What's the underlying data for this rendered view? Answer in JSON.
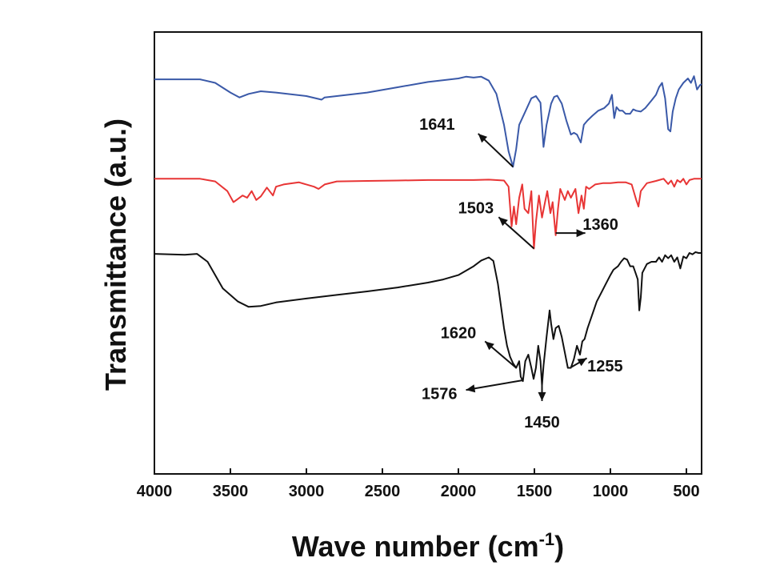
{
  "chart_data": {
    "type": "line",
    "xlabel": "Wave number (cm",
    "xlabel_sup": "-1",
    "xlabel_close": ")",
    "ylabel": "Transmittance (a.u.)",
    "xlim": [
      4000,
      400
    ],
    "x_reversed": true,
    "x_ticks": [
      "4000",
      "3500",
      "3000",
      "2500",
      "2000",
      "1500",
      "1000",
      "500"
    ],
    "y_ticks_visible": false,
    "grid": false,
    "legend": "none",
    "series": [
      {
        "color": "#3a59a8",
        "points": [
          [
            4000,
            0.893
          ],
          [
            3700,
            0.893
          ],
          [
            3600,
            0.885
          ],
          [
            3500,
            0.863
          ],
          [
            3440,
            0.852
          ],
          [
            3380,
            0.86
          ],
          [
            3300,
            0.866
          ],
          [
            3200,
            0.863
          ],
          [
            3000,
            0.855
          ],
          [
            2900,
            0.847
          ],
          [
            2880,
            0.852
          ],
          [
            2800,
            0.855
          ],
          [
            2600,
            0.863
          ],
          [
            2400,
            0.875
          ],
          [
            2200,
            0.887
          ],
          [
            2000,
            0.895
          ],
          [
            1950,
            0.899
          ],
          [
            1900,
            0.897
          ],
          [
            1850,
            0.899
          ],
          [
            1800,
            0.89
          ],
          [
            1750,
            0.86
          ],
          [
            1700,
            0.79
          ],
          [
            1670,
            0.73
          ],
          [
            1641,
            0.695
          ],
          [
            1620,
            0.735
          ],
          [
            1600,
            0.79
          ],
          [
            1560,
            0.82
          ],
          [
            1520,
            0.85
          ],
          [
            1490,
            0.855
          ],
          [
            1460,
            0.84
          ],
          [
            1440,
            0.74
          ],
          [
            1420,
            0.79
          ],
          [
            1390,
            0.838
          ],
          [
            1370,
            0.853
          ],
          [
            1350,
            0.856
          ],
          [
            1320,
            0.838
          ],
          [
            1290,
            0.8
          ],
          [
            1260,
            0.768
          ],
          [
            1240,
            0.772
          ],
          [
            1220,
            0.768
          ],
          [
            1195,
            0.75
          ],
          [
            1175,
            0.79
          ],
          [
            1150,
            0.8
          ],
          [
            1120,
            0.81
          ],
          [
            1080,
            0.822
          ],
          [
            1040,
            0.828
          ],
          [
            1010,
            0.838
          ],
          [
            990,
            0.858
          ],
          [
            975,
            0.805
          ],
          [
            960,
            0.83
          ],
          [
            940,
            0.822
          ],
          [
            920,
            0.822
          ],
          [
            900,
            0.815
          ],
          [
            870,
            0.815
          ],
          [
            850,
            0.825
          ],
          [
            830,
            0.822
          ],
          [
            800,
            0.82
          ],
          [
            770,
            0.828
          ],
          [
            730,
            0.845
          ],
          [
            700,
            0.858
          ],
          [
            680,
            0.875
          ],
          [
            660,
            0.885
          ],
          [
            640,
            0.85
          ],
          [
            620,
            0.78
          ],
          [
            605,
            0.775
          ],
          [
            590,
            0.82
          ],
          [
            570,
            0.85
          ],
          [
            550,
            0.87
          ],
          [
            520,
            0.885
          ],
          [
            490,
            0.895
          ],
          [
            470,
            0.885
          ],
          [
            450,
            0.9
          ],
          [
            430,
            0.87
          ],
          [
            410,
            0.88
          ],
          [
            400,
            0.882
          ]
        ]
      },
      {
        "color": "#e83535",
        "points": [
          [
            4000,
            0.668
          ],
          [
            3700,
            0.668
          ],
          [
            3600,
            0.662
          ],
          [
            3520,
            0.64
          ],
          [
            3480,
            0.615
          ],
          [
            3460,
            0.62
          ],
          [
            3420,
            0.63
          ],
          [
            3390,
            0.625
          ],
          [
            3360,
            0.64
          ],
          [
            3330,
            0.62
          ],
          [
            3300,
            0.628
          ],
          [
            3260,
            0.648
          ],
          [
            3220,
            0.63
          ],
          [
            3200,
            0.65
          ],
          [
            3150,
            0.655
          ],
          [
            3050,
            0.66
          ],
          [
            2950,
            0.65
          ],
          [
            2920,
            0.645
          ],
          [
            2880,
            0.655
          ],
          [
            2800,
            0.662
          ],
          [
            2600,
            0.663
          ],
          [
            2400,
            0.664
          ],
          [
            2200,
            0.665
          ],
          [
            2000,
            0.665
          ],
          [
            1900,
            0.665
          ],
          [
            1800,
            0.666
          ],
          [
            1700,
            0.664
          ],
          [
            1670,
            0.65
          ],
          [
            1650,
            0.56
          ],
          [
            1635,
            0.605
          ],
          [
            1620,
            0.565
          ],
          [
            1600,
            0.625
          ],
          [
            1580,
            0.655
          ],
          [
            1565,
            0.6
          ],
          [
            1540,
            0.59
          ],
          [
            1520,
            0.64
          ],
          [
            1503,
            0.51
          ],
          [
            1490,
            0.57
          ],
          [
            1470,
            0.63
          ],
          [
            1450,
            0.58
          ],
          [
            1430,
            0.615
          ],
          [
            1415,
            0.64
          ],
          [
            1395,
            0.59
          ],
          [
            1380,
            0.615
          ],
          [
            1360,
            0.54
          ],
          [
            1345,
            0.6
          ],
          [
            1330,
            0.645
          ],
          [
            1300,
            0.62
          ],
          [
            1280,
            0.64
          ],
          [
            1260,
            0.625
          ],
          [
            1230,
            0.645
          ],
          [
            1210,
            0.59
          ],
          [
            1190,
            0.63
          ],
          [
            1175,
            0.6
          ],
          [
            1160,
            0.65
          ],
          [
            1140,
            0.645
          ],
          [
            1100,
            0.655
          ],
          [
            1050,
            0.658
          ],
          [
            1000,
            0.658
          ],
          [
            950,
            0.66
          ],
          [
            900,
            0.66
          ],
          [
            860,
            0.655
          ],
          [
            830,
            0.62
          ],
          [
            815,
            0.605
          ],
          [
            800,
            0.64
          ],
          [
            760,
            0.658
          ],
          [
            700,
            0.663
          ],
          [
            650,
            0.668
          ],
          [
            620,
            0.656
          ],
          [
            600,
            0.664
          ],
          [
            580,
            0.65
          ],
          [
            560,
            0.665
          ],
          [
            540,
            0.66
          ],
          [
            520,
            0.668
          ],
          [
            500,
            0.655
          ],
          [
            480,
            0.665
          ],
          [
            450,
            0.668
          ],
          [
            400,
            0.668
          ]
        ]
      },
      {
        "color": "#111111",
        "points": [
          [
            4000,
            0.498
          ],
          [
            3800,
            0.496
          ],
          [
            3720,
            0.498
          ],
          [
            3650,
            0.48
          ],
          [
            3550,
            0.42
          ],
          [
            3450,
            0.39
          ],
          [
            3380,
            0.378
          ],
          [
            3300,
            0.38
          ],
          [
            3200,
            0.388
          ],
          [
            3000,
            0.397
          ],
          [
            2800,
            0.405
          ],
          [
            2600,
            0.413
          ],
          [
            2400,
            0.422
          ],
          [
            2200,
            0.433
          ],
          [
            2100,
            0.44
          ],
          [
            2000,
            0.45
          ],
          [
            1900,
            0.47
          ],
          [
            1850,
            0.483
          ],
          [
            1800,
            0.49
          ],
          [
            1770,
            0.482
          ],
          [
            1740,
            0.43
          ],
          [
            1720,
            0.38
          ],
          [
            1700,
            0.33
          ],
          [
            1680,
            0.29
          ],
          [
            1660,
            0.265
          ],
          [
            1640,
            0.25
          ],
          [
            1620,
            0.24
          ],
          [
            1600,
            0.255
          ],
          [
            1590,
            0.22
          ],
          [
            1576,
            0.21
          ],
          [
            1560,
            0.255
          ],
          [
            1540,
            0.27
          ],
          [
            1520,
            0.24
          ],
          [
            1505,
            0.215
          ],
          [
            1490,
            0.24
          ],
          [
            1475,
            0.29
          ],
          [
            1460,
            0.255
          ],
          [
            1450,
            0.2
          ],
          [
            1440,
            0.245
          ],
          [
            1420,
            0.31
          ],
          [
            1400,
            0.37
          ],
          [
            1390,
            0.34
          ],
          [
            1375,
            0.305
          ],
          [
            1360,
            0.33
          ],
          [
            1340,
            0.335
          ],
          [
            1320,
            0.31
          ],
          [
            1300,
            0.275
          ],
          [
            1280,
            0.24
          ],
          [
            1260,
            0.24
          ],
          [
            1240,
            0.26
          ],
          [
            1220,
            0.29
          ],
          [
            1200,
            0.27
          ],
          [
            1185,
            0.3
          ],
          [
            1170,
            0.305
          ],
          [
            1150,
            0.33
          ],
          [
            1120,
            0.36
          ],
          [
            1090,
            0.39
          ],
          [
            1060,
            0.41
          ],
          [
            1030,
            0.43
          ],
          [
            1000,
            0.45
          ],
          [
            980,
            0.462
          ],
          [
            950,
            0.47
          ],
          [
            930,
            0.48
          ],
          [
            910,
            0.488
          ],
          [
            890,
            0.485
          ],
          [
            870,
            0.47
          ],
          [
            850,
            0.47
          ],
          [
            835,
            0.455
          ],
          [
            820,
            0.44
          ],
          [
            810,
            0.37
          ],
          [
            800,
            0.4
          ],
          [
            790,
            0.455
          ],
          [
            760,
            0.475
          ],
          [
            730,
            0.48
          ],
          [
            700,
            0.48
          ],
          [
            680,
            0.49
          ],
          [
            660,
            0.48
          ],
          [
            640,
            0.495
          ],
          [
            620,
            0.488
          ],
          [
            600,
            0.495
          ],
          [
            580,
            0.48
          ],
          [
            560,
            0.49
          ],
          [
            540,
            0.465
          ],
          [
            520,
            0.492
          ],
          [
            500,
            0.488
          ],
          [
            480,
            0.5
          ],
          [
            460,
            0.497
          ],
          [
            440,
            0.502
          ],
          [
            420,
            0.5
          ],
          [
            400,
            0.5
          ]
        ]
      }
    ],
    "annotations": [
      {
        "label": "1641",
        "arrow_from": [
          1641,
          0.695
        ],
        "arrow_to": [
          1870,
          0.77
        ],
        "text_at": [
          2140,
          0.792
        ]
      },
      {
        "label": "1503",
        "arrow_from": [
          1503,
          0.51
        ],
        "arrow_to": [
          1735,
          0.581
        ],
        "text_at": [
          1885,
          0.602
        ]
      },
      {
        "label": "1360",
        "arrow_from": [
          1360,
          0.545
        ],
        "arrow_to": [
          1165,
          0.545
        ],
        "text_at": [
          1065,
          0.565
        ]
      },
      {
        "label": "1620",
        "arrow_from": [
          1620,
          0.24
        ],
        "arrow_to": [
          1825,
          0.3
        ],
        "text_at": [
          2000,
          0.32
        ]
      },
      {
        "label": "1576",
        "arrow_from": [
          1576,
          0.212
        ],
        "arrow_to": [
          1950,
          0.19
        ],
        "text_at": [
          2125,
          0.182
        ]
      },
      {
        "label": "1450",
        "arrow_from": [
          1450,
          0.215
        ],
        "arrow_to": [
          1450,
          0.165
        ],
        "text_at": [
          1450,
          0.118
        ]
      },
      {
        "label": "1255",
        "arrow_from": [
          1255,
          0.242
        ],
        "arrow_to": [
          1155,
          0.262
        ],
        "text_at": [
          1035,
          0.245
        ]
      }
    ]
  }
}
